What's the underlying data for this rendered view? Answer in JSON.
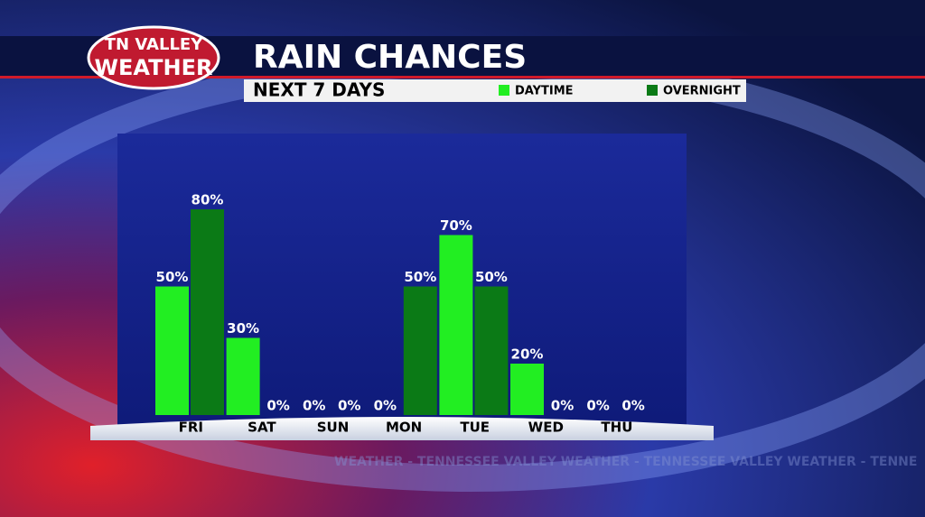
{
  "logo": {
    "line1": "TN VALLEY",
    "line2": "WEATHER"
  },
  "watermark": "WEATHER - TENNESSEE VALLEY WEATHER - TENNESSEE VALLEY WEATHER - TENNE",
  "chart_data": {
    "type": "bar",
    "title": "RAIN CHANCES",
    "subtitle": "NEXT 7 DAYS",
    "categories": [
      "FRI",
      "SAT",
      "SUN",
      "MON",
      "TUE",
      "WED",
      "THU"
    ],
    "series": [
      {
        "name": "DAYTIME",
        "color": "#22ee22",
        "values": [
          50,
          30,
          0,
          0,
          70,
          20,
          0
        ],
        "value_labels": [
          "50%",
          "30%",
          "0%",
          "0%",
          "70%",
          "20%",
          "0%"
        ]
      },
      {
        "name": "OVERNIGHT",
        "color": "#0b7a16",
        "values": [
          80,
          0,
          0,
          50,
          50,
          0,
          0
        ],
        "value_labels": [
          "80%",
          "0%",
          "0%",
          "50%",
          "50%",
          "0%",
          "0%"
        ]
      }
    ],
    "ylim": [
      0,
      100
    ],
    "grid": false
  }
}
